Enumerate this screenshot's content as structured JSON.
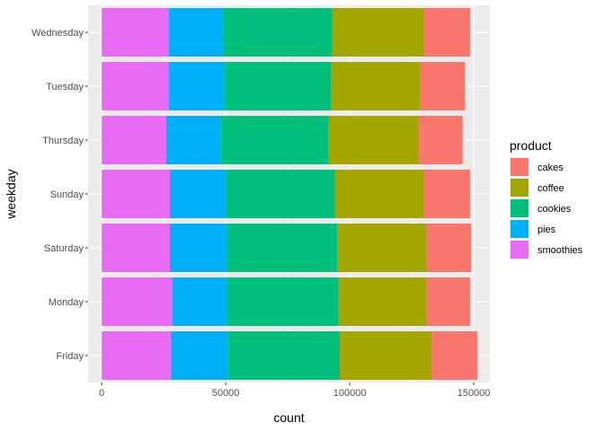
{
  "chart_data": {
    "type": "bar",
    "orientation": "horizontal",
    "stacked": true,
    "xlabel": "count",
    "ylabel": "weekday",
    "xlim": [
      -5500,
      156500
    ],
    "xticks": [
      0,
      50000,
      100000,
      150000
    ],
    "xtick_labels": [
      "0",
      "50000",
      "100000",
      "150000"
    ],
    "grid": true,
    "legend": {
      "title": "product",
      "position": "right",
      "items": [
        {
          "name": "cakes",
          "color": "#F8766D"
        },
        {
          "name": "coffee",
          "color": "#A3A500"
        },
        {
          "name": "cookies",
          "color": "#00BF7D"
        },
        {
          "name": "pies",
          "color": "#00B0F6"
        },
        {
          "name": "smoothies",
          "color": "#E76BF3"
        }
      ]
    },
    "categories": [
      "Wednesday",
      "Tuesday",
      "Thursday",
      "Sunday",
      "Saturday",
      "Monday",
      "Friday"
    ],
    "stack_order_from_zero": [
      "smoothies",
      "pies",
      "cookies",
      "coffee",
      "cakes"
    ],
    "series": [
      {
        "name": "smoothies",
        "color": "#E76BF3",
        "values": [
          27000,
          27000,
          26000,
          27500,
          27500,
          28500,
          28000
        ]
      },
      {
        "name": "pies",
        "color": "#00B0F6",
        "values": [
          22000,
          22500,
          22000,
          22500,
          23000,
          22000,
          23000
        ]
      },
      {
        "name": "cookies",
        "color": "#00BF7D",
        "values": [
          44000,
          43000,
          43500,
          44000,
          44500,
          45000,
          45000
        ]
      },
      {
        "name": "coffee",
        "color": "#A3A500",
        "values": [
          37000,
          36000,
          36000,
          36000,
          36000,
          35500,
          37000
        ]
      },
      {
        "name": "cakes",
        "color": "#F8766D",
        "values": [
          18500,
          18000,
          18000,
          18500,
          18000,
          17500,
          18500
        ]
      }
    ]
  }
}
